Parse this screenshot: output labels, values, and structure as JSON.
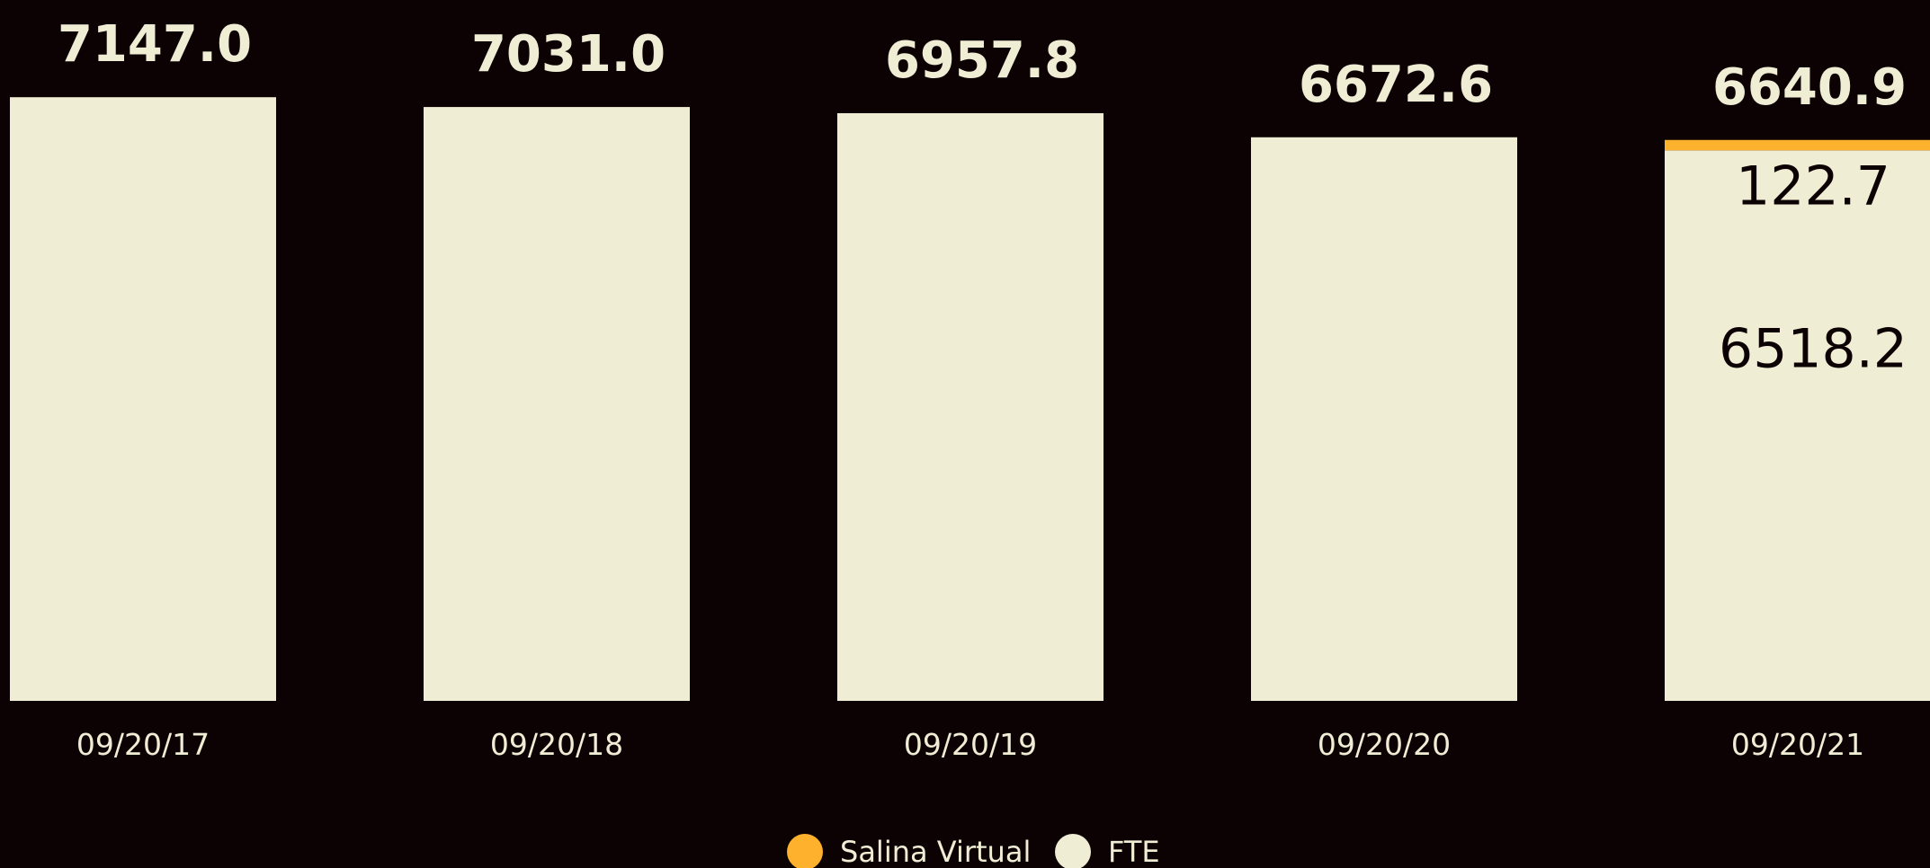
{
  "chart_data": {
    "type": "bar",
    "stacked": true,
    "categories": [
      "09/20/17",
      "09/20/18",
      "09/20/19",
      "09/20/20",
      "09/20/21"
    ],
    "series": [
      {
        "name": "FTE",
        "values": [
          7147.0,
          7031.0,
          6957.8,
          6672.6,
          6518.2
        ],
        "color": "#efedd4"
      },
      {
        "name": "Salina Virtual",
        "values": [
          0,
          0,
          0,
          0,
          122.7
        ],
        "color": "#fdb12c"
      }
    ],
    "totals": [
      "7147.0",
      "7031.0",
      "6957.8",
      "6672.6",
      "6640.9"
    ],
    "segment_labels": [
      {
        "category_index": 4,
        "series": "Salina Virtual",
        "text": "122.7"
      },
      {
        "category_index": 4,
        "series": "FTE",
        "text": "6518.2"
      }
    ],
    "legend": [
      {
        "label": "Salina Virtual",
        "color": "#fdb12c"
      },
      {
        "label": "FTE",
        "color": "#efedd4"
      }
    ],
    "legend_position": "bottom-center",
    "ylim": [
      0,
      7200
    ],
    "grid": false,
    "colors": {
      "background": "#0d0203",
      "text": "#efedd4",
      "label_dark": "#0d0203"
    }
  }
}
